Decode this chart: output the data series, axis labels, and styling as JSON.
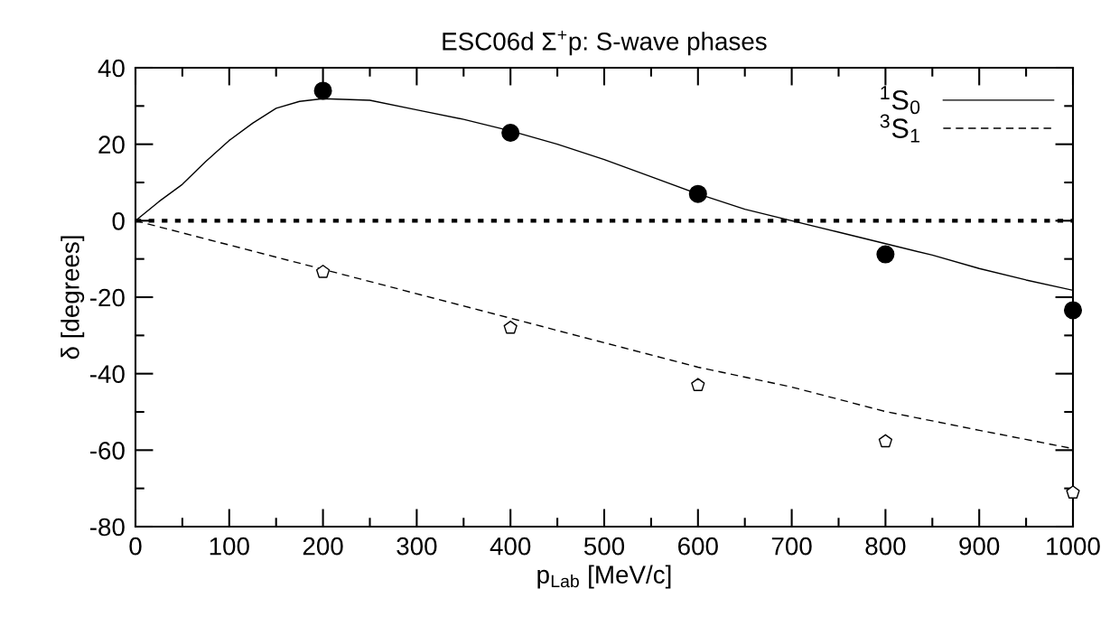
{
  "chart_data": {
    "type": "line",
    "title": "ESC06d Σ$^{+}$p: S-wave phases",
    "xlabel": "p$_{Lab}$ [MeV/c]",
    "ylabel": "δ [degrees]",
    "xlim": [
      0,
      1000
    ],
    "ylim": [
      -80,
      40
    ],
    "xticks": [
      0,
      {
        "value": 50,
        "label": null
      },
      100,
      {
        "value": 150,
        "label": null
      },
      200,
      {
        "value": 250,
        "label": null
      },
      300,
      {
        "value": 350,
        "label": null
      },
      400,
      {
        "value": 450,
        "label": null
      },
      500,
      {
        "value": 550,
        "label": null
      },
      600,
      {
        "value": 650,
        "label": null
      },
      700,
      {
        "value": 750,
        "label": null
      },
      800,
      {
        "value": 850,
        "label": null
      },
      900,
      {
        "value": 950,
        "label": null
      },
      1000
    ],
    "yticks": [
      -80,
      {
        "value": -70,
        "label": null
      },
      -60,
      {
        "value": -50,
        "label": null
      },
      -40,
      {
        "value": -30,
        "label": null
      },
      -20,
      {
        "value": -10,
        "label": null
      },
      0,
      {
        "value": 10,
        "label": null
      },
      20,
      {
        "value": 30,
        "label": null
      },
      40
    ],
    "grid": false,
    "legend": "top right",
    "ref_lines": [
      {
        "axis": "y",
        "value": 0,
        "line_style": "dotted",
        "color": "#000000"
      }
    ],
    "series": [
      {
        "name": "$^{1}$S$_{0}$",
        "color": "#000000",
        "line_style": "solid",
        "marker": "none",
        "x": [
          0,
          25,
          50,
          75,
          100,
          125,
          150,
          175,
          200,
          250,
          300,
          350,
          400,
          450,
          500,
          550,
          600,
          650,
          700,
          750,
          800,
          850,
          900,
          950,
          1000
        ],
        "values": [
          0,
          5,
          9.5,
          15.5,
          21,
          25.5,
          29.4,
          31.2,
          31.9,
          31.5,
          29,
          26.5,
          23.5,
          20,
          16,
          11.5,
          7,
          3,
          0,
          -3,
          -6,
          -9,
          -12.5,
          -15.5,
          -18.2
        ]
      },
      {
        "name": "$^{3}$S$_{1}$",
        "color": "#000000",
        "line_style": "dashed",
        "marker": "none",
        "x": [
          0,
          200,
          400,
          600,
          700,
          800,
          900,
          1000
        ],
        "values": [
          0,
          -12.7,
          -25.5,
          -38.3,
          -43.5,
          -49.9,
          -54.8,
          -59.6
        ]
      },
      {
        "type": "scatter",
        "color": "#000000",
        "marker": "circle",
        "x": [
          200,
          400,
          600,
          800,
          1000
        ],
        "values": [
          34,
          23,
          7,
          -8.8,
          -23.4
        ]
      },
      {
        "type": "scatter",
        "color": "#000000",
        "x": [
          200,
          400,
          600,
          800,
          1000
        ],
        "values": [
          -13.4,
          -28,
          -43,
          -57.7,
          -71.1
        ]
      }
    ]
  }
}
